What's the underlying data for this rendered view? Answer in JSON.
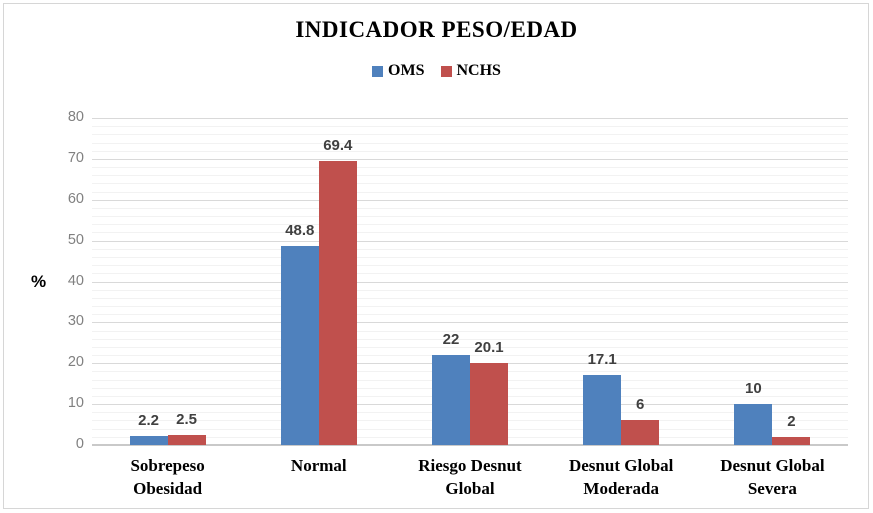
{
  "chart": {
    "title": "INDICADOR PESO/EDAD",
    "ylabel": "%"
  },
  "chart_data": {
    "type": "bar",
    "title": "INDICADOR PESO/EDAD",
    "categories": [
      "Sobrepeso Obesidad",
      "Normal",
      "Riesgo Desnut Global",
      "Desnut Global Moderada",
      "Desnut Global Severa"
    ],
    "series": [
      {
        "name": "OMS",
        "color": "#4F81BD",
        "values": [
          2.2,
          48.8,
          22,
          17.1,
          10
        ],
        "labels": [
          "2.2",
          "48.8",
          "22",
          "17.1",
          "10"
        ]
      },
      {
        "name": "NCHS",
        "color": "#C0504D",
        "values": [
          2.5,
          69.4,
          20.1,
          6,
          2
        ],
        "labels": [
          "2.5",
          "69.4",
          "20.1",
          "6",
          "2"
        ]
      }
    ],
    "xlabel": "",
    "ylabel": "%",
    "ylim": [
      0,
      80
    ],
    "y_major_step": 10,
    "y_minor_step": 2,
    "y_ticks": [
      "0",
      "10",
      "20",
      "30",
      "40",
      "50",
      "60",
      "70",
      "80"
    ],
    "legend_position": "top",
    "grid": true,
    "data_label_color": "#404040",
    "tick_label_color": "#808080"
  }
}
